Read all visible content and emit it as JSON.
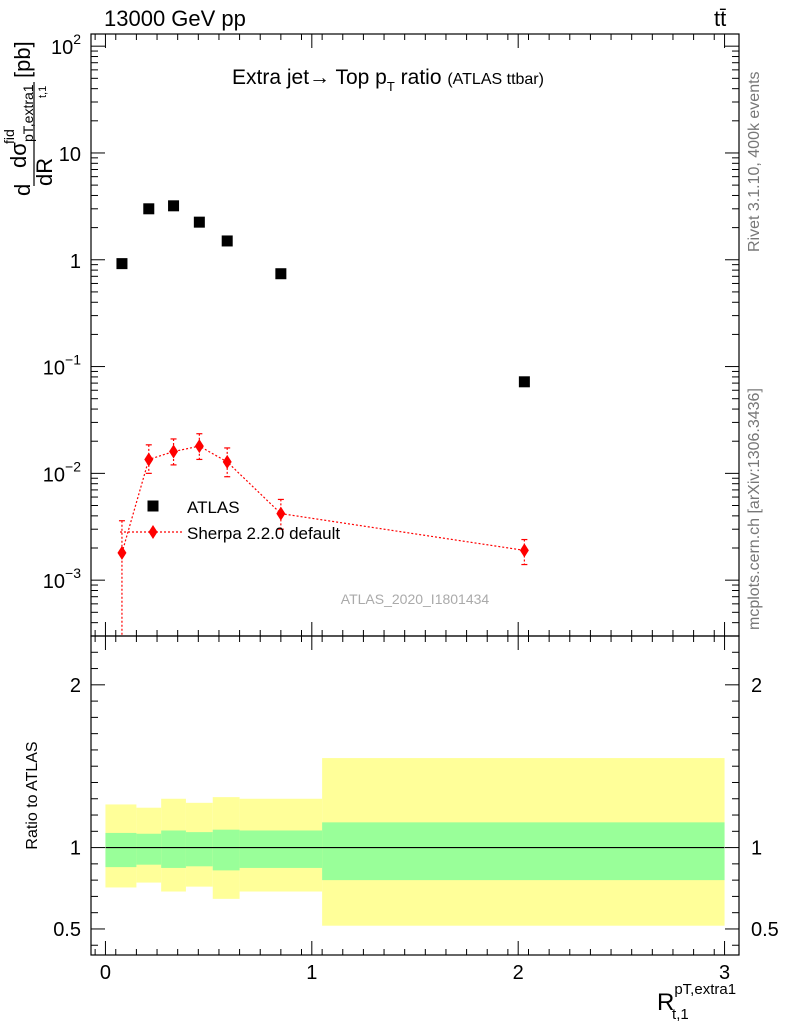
{
  "header": {
    "energy_label": "13000 GeV pp",
    "process_label": "tt̄"
  },
  "side_labels": {
    "rivet": "Rivet 3.1.10,  400k events",
    "mcplots": "mcplots.cern.ch [arXiv:1306.3436]"
  },
  "chart_data": [
    {
      "type": "scatter",
      "title": "Extra jet→ Top p_T ratio (ATLAS ttbar)",
      "title_parts": {
        "main": "Extra jet",
        "arrow": "→",
        "top": " Top p",
        "sub": "T",
        "ratio": " ratio",
        "small": "(ATLAS ttbar)"
      },
      "ylabel": "d dσfid/dRpT,extra1 t,1 [pb]",
      "ylabel_parts": {
        "d": "d",
        "dsigma": "dσ",
        "fid": "fid",
        "dR": "dR",
        "sub": "pT,extra1",
        "sub2": "t,1",
        "unit": "[pb]"
      },
      "yscale": "log",
      "ylim": [
        0.0003,
        130
      ],
      "xlim": [
        -0.07,
        3.07
      ],
      "y_tick_labels": [
        {
          "base": "10",
          "exp": "2",
          "v": 100
        },
        {
          "base": "10",
          "exp": "",
          "v": 10
        },
        {
          "base": "1",
          "exp": "",
          "v": 1
        },
        {
          "base": "10",
          "exp": "−1",
          "v": 0.1
        },
        {
          "base": "10",
          "exp": "−2",
          "v": 0.01
        },
        {
          "base": "10",
          "exp": "−3",
          "v": 0.001
        }
      ],
      "watermark": "ATLAS_2020_I1801434",
      "legend": {
        "placement": "left-middle",
        "entries": [
          "ATLAS",
          "Sherpa 2.2.0 default"
        ]
      },
      "series": [
        {
          "name": "ATLAS",
          "color": "#000000",
          "marker": "square",
          "x": [
            0.08,
            0.21,
            0.33,
            0.455,
            0.59,
            0.85,
            2.03
          ],
          "y": [
            0.92,
            3.0,
            3.2,
            2.25,
            1.5,
            0.74,
            0.072
          ]
        },
        {
          "name": "Sherpa 2.2.0 default",
          "color": "#ff0000",
          "marker": "diamond",
          "line": "dotted",
          "x": [
            0.08,
            0.21,
            0.33,
            0.455,
            0.59,
            0.85,
            2.03
          ],
          "y": [
            0.0018,
            0.0135,
            0.016,
            0.018,
            0.0128,
            0.0042,
            0.0019
          ],
          "yerr_low": [
            0.0018,
            0.0035,
            0.004,
            0.0045,
            0.0035,
            0.0012,
            0.0005
          ],
          "yerr_high": [
            0.0018,
            0.005,
            0.005,
            0.0055,
            0.0045,
            0.0015,
            0.0005
          ]
        }
      ]
    },
    {
      "type": "area",
      "ylabel": "Ratio to ATLAS",
      "xlabel": "R pT,extra1 t,1",
      "xlabel_parts": {
        "R": "R",
        "sup": "pT,extra1",
        "sub": "t,1"
      },
      "xlim": [
        -0.07,
        3.07
      ],
      "ylim": [
        0.34,
        2.3
      ],
      "x_ticks": [
        0,
        1,
        2,
        3
      ],
      "y_ticks": [
        0.5,
        1,
        2
      ],
      "y_tick_labels_right": [
        "0.5",
        "1",
        "2"
      ],
      "reference_line": 1,
      "bin_edges": [
        0,
        0.15,
        0.27,
        0.39,
        0.52,
        0.65,
        1.05,
        3.0
      ],
      "bands": [
        {
          "name": "inner",
          "color": "#99ff99",
          "low": [
            0.88,
            0.895,
            0.875,
            0.885,
            0.86,
            0.875,
            0.8
          ],
          "high": [
            1.09,
            1.085,
            1.105,
            1.095,
            1.11,
            1.105,
            1.155
          ]
        },
        {
          "name": "outer",
          "color": "#ffff99",
          "low": [
            0.755,
            0.785,
            0.73,
            0.76,
            0.685,
            0.73,
            0.52
          ],
          "high": [
            1.265,
            1.245,
            1.3,
            1.275,
            1.31,
            1.3,
            1.55
          ]
        }
      ]
    }
  ]
}
